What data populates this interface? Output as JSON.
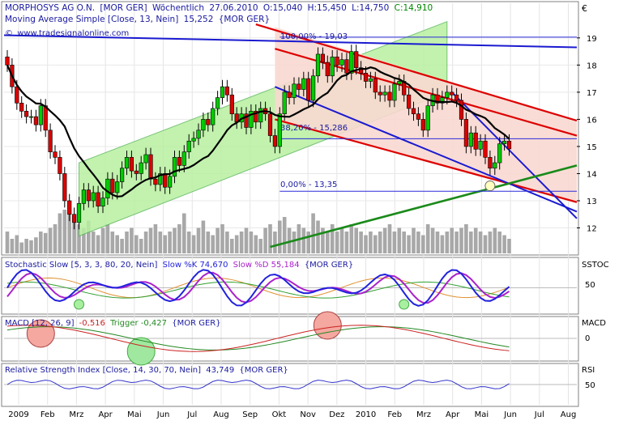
{
  "header": {
    "title_name": "MORPHOSYS AG O.N.",
    "title_exchange": "[MOR GER]",
    "title_period": "Wöchentlich",
    "title_date": "27.06.2010",
    "open": "O:15,040",
    "high": "H:15,450",
    "low": "L:14,750",
    "close": "C:14,910",
    "ma_label": "Moving Average Simple [Close, 13, Nein]",
    "ma_value": "15,252",
    "ma_exchange": "{MOR GER}",
    "website": "www.tradesignalonline.com",
    "currency": "€"
  },
  "colors": {
    "up": "#00cc00",
    "down": "#dd0000",
    "ma": "#000000",
    "channel_fill": "#b8f0a0",
    "down_channel_fill": "#f8d8d0",
    "fib": "#2b2bd9",
    "volume": "#a8a8a8",
    "sto_k": "#2222dd",
    "sto_d": "#aa22cc",
    "macd": "#cc2222",
    "trigger": "#228822",
    "rsi": "#3333cc"
  },
  "fib": {
    "high_label": "100,00% - 19,03",
    "mid_label": "38,20% - 15,286",
    "low_label": "0,00% - 13,35",
    "high_value": 19.03,
    "mid_value": 15.286,
    "low_value": 13.35
  },
  "indicators": {
    "stochastic_label": "Stochastic Slow [5, 3, 3, 80, 20, Nein]",
    "stochastic_k": "Slow %K 74,670",
    "stochastic_d": "Slow %D 55,184",
    "stochastic_exchange": "{MOR GER}",
    "stochastic_tag": "SSTOC",
    "stochastic_level": "50",
    "macd_label": "MACD [12, 26, 9]",
    "macd_value": "-0,516",
    "macd_trigger": "Trigger -0,427",
    "macd_exchange": "{MOR GER}",
    "macd_tag": "MACD",
    "macd_level": "0",
    "rsi_label": "Relative Strength Index [Close, 14, 30, 70, Nein]",
    "rsi_value": "43,749",
    "rsi_exchange": "{MOR GER}",
    "rsi_tag": "RSI",
    "rsi_level": "50"
  },
  "chart_data": {
    "type": "candlestick",
    "y_ticks": [
      "19",
      "18",
      "17",
      "16",
      "15",
      "14",
      "13",
      "12"
    ],
    "ylim": [
      11.3,
      19.8
    ],
    "x_ticks": [
      "2009",
      "Feb",
      "Mrz",
      "Apr",
      "Mai",
      "Jun",
      "Jul",
      "Aug",
      "Sep",
      "Okt",
      "Nov",
      "Dez",
      "2010",
      "Feb",
      "Mrz",
      "Apr",
      "Mai",
      "Jun",
      "Jul",
      "Aug"
    ],
    "closes": [
      18.0,
      17.2,
      16.6,
      16.3,
      16.1,
      16.1,
      15.8,
      16.5,
      15.6,
      14.8,
      14.6,
      14.0,
      13.0,
      12.5,
      12.2,
      12.9,
      13.4,
      13.0,
      13.3,
      12.8,
      13.1,
      13.8,
      13.3,
      13.7,
      14.2,
      14.6,
      14.1,
      14.0,
      14.4,
      14.7,
      13.8,
      13.6,
      14.0,
      13.5,
      13.9,
      14.6,
      14.3,
      14.8,
      15.2,
      15.3,
      15.6,
      16.0,
      15.8,
      16.4,
      16.8,
      17.2,
      16.9,
      16.2,
      15.9,
      16.2,
      15.7,
      16.3,
      15.9,
      16.4,
      16.2,
      15.4,
      15.0,
      16.2,
      17.0,
      16.8,
      17.3,
      17.1,
      17.5,
      16.7,
      17.6,
      18.4,
      18.1,
      17.6,
      18.3,
      18.0,
      18.2,
      17.7,
      18.5,
      17.9,
      17.7,
      17.4,
      17.5,
      17.0,
      16.9,
      17.0,
      16.7,
      17.3,
      17.4,
      16.9,
      16.4,
      16.2,
      16.0,
      15.6,
      16.5,
      16.9,
      16.6,
      16.8,
      17.0,
      16.9,
      16.7,
      16.0,
      15.0,
      15.5,
      14.9,
      15.2,
      14.6,
      14.2,
      14.4,
      15.1,
      15.2,
      14.91
    ],
    "volume": [
      30,
      20,
      25,
      15,
      20,
      18,
      22,
      30,
      28,
      35,
      40,
      55,
      60,
      70,
      50,
      40,
      35,
      45,
      30,
      25,
      35,
      40,
      30,
      25,
      20,
      30,
      35,
      25,
      20,
      30,
      35,
      40,
      30,
      25,
      30,
      35,
      40,
      55,
      30,
      25,
      35,
      45,
      30,
      25,
      35,
      40,
      30,
      20,
      25,
      30,
      35,
      30,
      25,
      20,
      35,
      40,
      30,
      45,
      50,
      35,
      30,
      40,
      35,
      30,
      55,
      45,
      35,
      30,
      40,
      30,
      35,
      30,
      40,
      35,
      30,
      25,
      30,
      25,
      30,
      35,
      40,
      30,
      35,
      30,
      25,
      35,
      30,
      25,
      40,
      35,
      30,
      25,
      30,
      35,
      30,
      35,
      40,
      30,
      35,
      30,
      25,
      30,
      35,
      30,
      25,
      20
    ]
  }
}
